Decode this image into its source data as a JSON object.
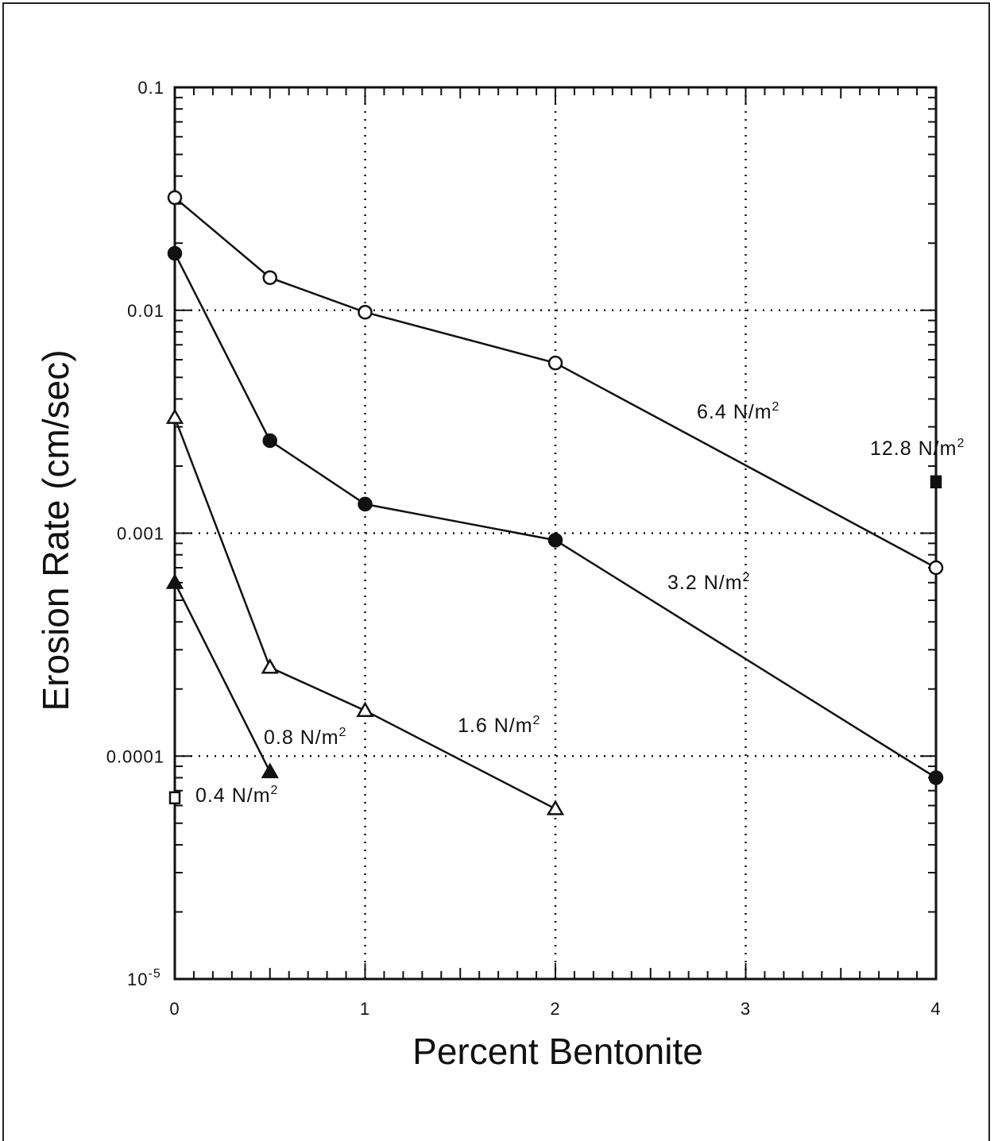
{
  "chart_data": {
    "type": "line",
    "xlabel": "Percent Bentonite",
    "ylabel": "Erosion Rate (cm/sec)",
    "yscale": "log",
    "xlim": [
      0,
      4
    ],
    "ylim": [
      1e-05,
      0.1
    ],
    "grid": true,
    "x_ticks": [
      "0",
      "1",
      "2",
      "3",
      "4"
    ],
    "y_ticks": [
      {
        "value": 0.1,
        "label": "0.1"
      },
      {
        "value": 0.01,
        "label": "0.01"
      },
      {
        "value": 0.001,
        "label": "0.001"
      },
      {
        "value": 0.0001,
        "label": "0.0001"
      },
      {
        "value": 1e-05,
        "label": "10",
        "exp": "-5"
      }
    ],
    "series": [
      {
        "name": "6.4 N/m²",
        "label_main": "6.4 N/m",
        "label_sup": "2",
        "marker": "circle-open",
        "x": [
          0,
          0.5,
          1,
          2,
          4
        ],
        "y": [
          0.032,
          0.014,
          0.0098,
          0.0058,
          0.0007
        ]
      },
      {
        "name": "3.2 N/m²",
        "label_main": "3.2 N/m",
        "label_sup": "2",
        "marker": "circle-filled",
        "x": [
          0,
          0.5,
          1,
          2,
          4
        ],
        "y": [
          0.018,
          0.0026,
          0.00135,
          0.00093,
          8e-05
        ]
      },
      {
        "name": "1.6 N/m²",
        "label_main": "1.6 N/m",
        "label_sup": "2",
        "marker": "triangle-open",
        "x": [
          0,
          0.5,
          1,
          2
        ],
        "y": [
          0.0033,
          0.00025,
          0.00016,
          5.8e-05
        ]
      },
      {
        "name": "0.8 N/m²",
        "label_main": "0.8 N/m",
        "label_sup": "2",
        "marker": "triangle-filled",
        "x": [
          0,
          0.5
        ],
        "y": [
          0.0006,
          8.5e-05
        ]
      },
      {
        "name": "0.4 N/m²",
        "label_main": "0.4 N/m",
        "label_sup": "2",
        "marker": "square-open",
        "x": [
          0
        ],
        "y": [
          6.5e-05
        ]
      },
      {
        "name": "12.8 N/m²",
        "label_main": "12.8 N/m",
        "label_sup": "2",
        "marker": "square-filled",
        "x": [
          4
        ],
        "y": [
          0.0017
        ]
      }
    ]
  }
}
